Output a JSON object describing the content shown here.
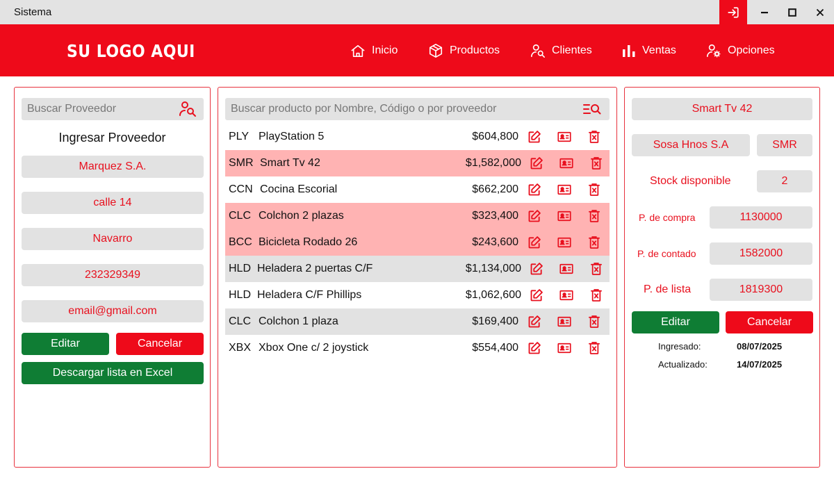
{
  "window": {
    "title": "Sistema"
  },
  "header": {
    "logo": "SU LOGO AQUI",
    "nav": [
      {
        "label": "Inicio",
        "icon": "home-icon"
      },
      {
        "label": "Productos",
        "icon": "box-icon"
      },
      {
        "label": "Clientes",
        "icon": "user-search-icon"
      },
      {
        "label": "Ventas",
        "icon": "bar-chart-icon"
      },
      {
        "label": "Opciones",
        "icon": "user-gear-icon"
      }
    ]
  },
  "left": {
    "search_placeholder": "Buscar Proveedor",
    "heading": "Ingresar Proveedor",
    "fields": [
      "Marquez S.A.",
      "calle 14",
      "Navarro",
      "232329349",
      "email@gmail.com"
    ],
    "edit_label": "Editar",
    "cancel_label": "Cancelar",
    "excel_label": "Descargar lista en Excel"
  },
  "middle": {
    "search_placeholder": "Buscar producto por Nombre, Código o por proveedor",
    "rows": [
      {
        "code": "PLY",
        "name": "PlayStation 5",
        "price": "$604,800"
      },
      {
        "code": "SMR",
        "name": "Smart Tv 42",
        "price": "$1,582,000"
      },
      {
        "code": "CCN",
        "name": "Cocina Escorial",
        "price": "$662,200"
      },
      {
        "code": "CLC",
        "name": "Colchon 2 plazas",
        "price": "$323,400"
      },
      {
        "code": "BCC",
        "name": "Bicicleta Rodado 26",
        "price": "$243,600"
      },
      {
        "code": "HLD",
        "name": "Heladera 2 puertas C/F",
        "price": "$1,134,000"
      },
      {
        "code": "HLD",
        "name": "Heladera C/F Phillips",
        "price": "$1,062,600"
      },
      {
        "code": "CLC",
        "name": "Colchon 1 plaza",
        "price": "$169,400"
      },
      {
        "code": "XBX",
        "name": "Xbox One c/ 2 joystick",
        "price": "$554,400"
      }
    ]
  },
  "right": {
    "product_name": "Smart Tv 42",
    "supplier": "Sosa Hnos S.A",
    "code": "SMR",
    "stock_label": "Stock disponible",
    "stock_value": "2",
    "purchase_label": "P. de compra",
    "purchase_value": "1130000",
    "cash_label": "P. de contado",
    "cash_value": "1582000",
    "list_label": "P. de lista",
    "list_value": "1819300",
    "edit_label": "Editar",
    "cancel_label": "Cancelar",
    "created_label": "Ingresado:",
    "created_value": "08/07/2025",
    "updated_label": "Actualizado:",
    "updated_value": "14/07/2025"
  },
  "colors": {
    "accent": "#ee0a1a",
    "highlight_row": "#ffb3b3",
    "alt_row": "#e2e2e2",
    "green": "#0f7d34"
  }
}
